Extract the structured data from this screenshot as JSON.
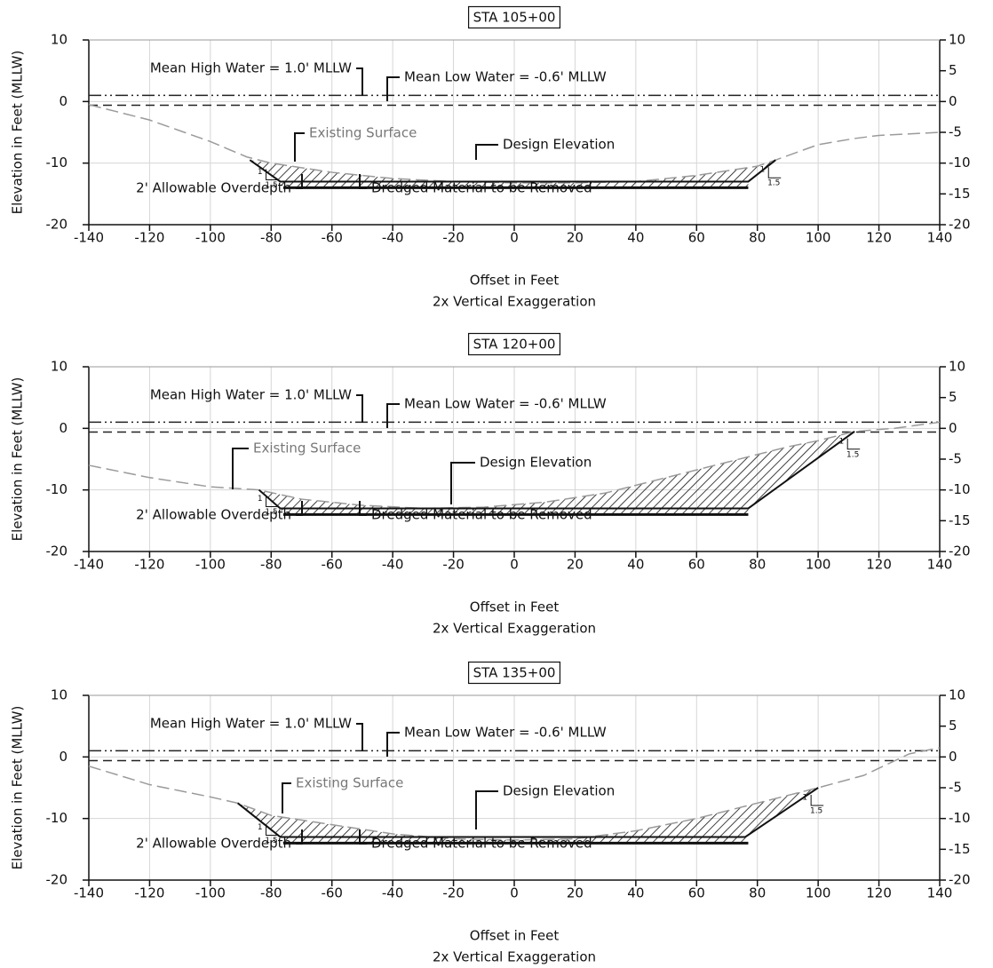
{
  "chart_data": [
    {
      "type": "line",
      "title": "STA 105+00",
      "x_label": "Offset in Feet",
      "x_sublabel": "2x Vertical Exaggeration",
      "y_label": "Elevation in Feet (MLLW)",
      "xlim": [
        -140,
        140
      ],
      "xticks": [
        -140,
        -120,
        -100,
        -80,
        -60,
        -40,
        -20,
        0,
        20,
        40,
        60,
        80,
        100,
        120,
        140
      ],
      "ylim": [
        -20,
        10
      ],
      "yticks": [
        -20,
        -10,
        0,
        10
      ],
      "y2lim": [
        -20,
        10
      ],
      "y2ticks": [
        -20,
        -15,
        -10,
        -5,
        0,
        5,
        10
      ],
      "grid": true,
      "reference_lines": [
        {
          "label": "Mean High Water = 1.0' MLLW",
          "y": 1.0
        },
        {
          "label": "Mean Low Water = -0.6' MLLW",
          "y": -0.6
        }
      ],
      "series": [
        {
          "name": "Existing Surface",
          "color": "#9a9a9a",
          "style": "dashed",
          "x": [
            -140,
            -120,
            -100,
            -88,
            -80,
            -60,
            -40,
            -20,
            0,
            20,
            40,
            60,
            80,
            86,
            100,
            112,
            120,
            140
          ],
          "values": [
            -0.5,
            -3,
            -6.5,
            -9,
            -10,
            -11.5,
            -12.5,
            -13,
            -13.2,
            -13.2,
            -13,
            -12,
            -10.5,
            -9.5,
            -7,
            -6,
            -5.5,
            -5
          ]
        },
        {
          "name": "Design Elevation",
          "color": "#111111",
          "style": "solid",
          "x": [
            -87,
            -77,
            77,
            86
          ],
          "values": [
            -9.5,
            -13,
            -13,
            -9.5
          ]
        },
        {
          "name": "2' Allowable Overdepth",
          "color": "#111111",
          "style": "solid",
          "x": [
            -76,
            77
          ],
          "values": [
            -14,
            -14
          ]
        }
      ],
      "annotation": "Dredged Material to be Removed",
      "slope_labels": {
        "rise": "1",
        "run": "1.5"
      }
    },
    {
      "type": "line",
      "title": "STA 120+00",
      "x_label": "Offset in Feet",
      "x_sublabel": "2x Vertical Exaggeration",
      "y_label": "Elevation in Feet (MLLW)",
      "xlim": [
        -140,
        140
      ],
      "xticks": [
        -140,
        -120,
        -100,
        -80,
        -60,
        -40,
        -20,
        0,
        20,
        40,
        60,
        80,
        100,
        120,
        140
      ],
      "ylim": [
        -20,
        10
      ],
      "yticks": [
        -20,
        -10,
        0,
        10
      ],
      "y2lim": [
        -20,
        10
      ],
      "y2ticks": [
        -20,
        -15,
        -10,
        -5,
        0,
        5,
        10
      ],
      "grid": true,
      "reference_lines": [
        {
          "label": "Mean High Water = 1.0' MLLW",
          "y": 1.0
        },
        {
          "label": "Mean Low Water = -0.6' MLLW",
          "y": -0.6
        }
      ],
      "series": [
        {
          "name": "Existing Surface",
          "color": "#9a9a9a",
          "style": "dashed",
          "x": [
            -140,
            -120,
            -100,
            -84,
            -70,
            -50,
            -30,
            -10,
            10,
            30,
            50,
            70,
            90,
            100,
            112,
            125,
            140
          ],
          "values": [
            -6,
            -8,
            -9.5,
            -10,
            -11.5,
            -12.5,
            -13,
            -12.8,
            -12,
            -10.5,
            -8,
            -5.5,
            -3,
            -2,
            -0.5,
            0,
            1
          ]
        },
        {
          "name": "Design Elevation",
          "color": "#111111",
          "style": "solid",
          "x": [
            -84,
            -77,
            77,
            112
          ],
          "values": [
            -10,
            -13,
            -13,
            -0.5
          ]
        },
        {
          "name": "2' Allowable Overdepth",
          "color": "#111111",
          "style": "solid",
          "x": [
            -76,
            77
          ],
          "values": [
            -14,
            -14
          ]
        }
      ],
      "annotation": "Dredged Material to be Removed",
      "slope_labels": {
        "rise": "1",
        "run": "1.5"
      }
    },
    {
      "type": "line",
      "title": "STA 135+00",
      "x_label": "Offset in Feet",
      "x_sublabel": "2x Vertical Exaggeration",
      "y_label": "Elevation in Feet (MLLW)",
      "xlim": [
        -140,
        140
      ],
      "xticks": [
        -140,
        -120,
        -100,
        -80,
        -60,
        -40,
        -20,
        0,
        20,
        40,
        60,
        80,
        100,
        120,
        140
      ],
      "ylim": [
        -20,
        10
      ],
      "yticks": [
        -20,
        -10,
        0,
        10
      ],
      "y2lim": [
        -20,
        10
      ],
      "y2ticks": [
        -20,
        -15,
        -10,
        -5,
        0,
        5,
        10
      ],
      "grid": true,
      "reference_lines": [
        {
          "label": "Mean High Water = 1.0' MLLW",
          "y": 1.0
        },
        {
          "label": "Mean Low Water = -0.6' MLLW",
          "y": -0.6
        }
      ],
      "series": [
        {
          "name": "Existing Surface",
          "color": "#9a9a9a",
          "style": "dashed",
          "x": [
            -140,
            -120,
            -100,
            -91,
            -80,
            -60,
            -40,
            -20,
            0,
            20,
            40,
            60,
            80,
            100,
            115,
            130,
            140
          ],
          "values": [
            -1.5,
            -4.5,
            -6.5,
            -7.5,
            -9.5,
            -11,
            -12.5,
            -13.3,
            -13.5,
            -13.3,
            -12,
            -10,
            -7.5,
            -5,
            -3,
            0.5,
            1.5
          ]
        },
        {
          "name": "Design Elevation",
          "color": "#111111",
          "style": "solid",
          "x": [
            -91,
            -77,
            76,
            100
          ],
          "values": [
            -7.5,
            -13,
            -13,
            -5
          ]
        },
        {
          "name": "2' Allowable Overdepth",
          "color": "#111111",
          "style": "solid",
          "x": [
            -76,
            77
          ],
          "values": [
            -14,
            -14
          ]
        }
      ],
      "annotation": "Dredged Material to be Removed",
      "slope_labels": {
        "rise": "1",
        "run": "1.5"
      }
    }
  ]
}
